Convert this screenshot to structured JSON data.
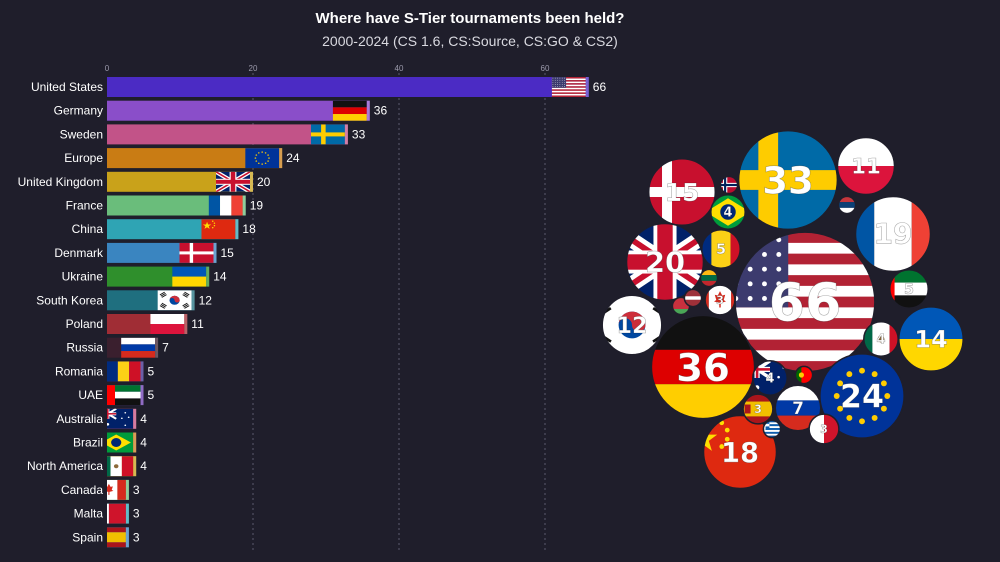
{
  "header": {
    "title": "Where have S-Tier tournaments been held?",
    "subtitle": "2000-2024 (CS 1.6, CS:Source, CS:GO & CS2)"
  },
  "chart_data": [
    {
      "type": "bar",
      "orientation": "horizontal",
      "xlim": [
        0,
        66
      ],
      "xticks": [
        "0",
        "20",
        "40",
        "60"
      ],
      "grid": true,
      "categories": [
        "United States",
        "Germany",
        "Sweden",
        "Europe",
        "United Kingdom",
        "France",
        "China",
        "Denmark",
        "Ukraine",
        "South Korea",
        "Poland",
        "Russia",
        "Romania",
        "UAE",
        "Australia",
        "Brazil",
        "North America",
        "Canada",
        "Malta",
        "Spain"
      ],
      "values": [
        66,
        36,
        33,
        24,
        20,
        19,
        18,
        15,
        14,
        12,
        11,
        7,
        5,
        5,
        4,
        4,
        4,
        3,
        3,
        3
      ],
      "value_labels": [
        "66",
        "36",
        "33",
        "24",
        "20",
        "19",
        "18",
        "15",
        "14",
        "12",
        "11",
        "7",
        "5",
        "5",
        "4",
        "4",
        "4",
        "3",
        "3",
        "3"
      ],
      "colors": [
        "#4b2bc4",
        "#8a4ec9",
        "#c25388",
        "#c97c14",
        "#c9a21a",
        "#6abd7b",
        "#2fa4b4",
        "#3a85c0",
        "#2f8f2c",
        "#1f6f7f",
        "#a02d35",
        "#3a1f2e",
        "#3a2a8a",
        "#6a3ab0",
        "#c75080",
        "#cc7a22",
        "#c9a21a",
        "#6abd7b",
        "#2fa4b4",
        "#3a85c0"
      ]
    },
    {
      "type": "bubble",
      "bubbles": [
        {
          "country": "United States",
          "flag": "us",
          "value": 66,
          "label": "66"
        },
        {
          "country": "Germany",
          "flag": "de",
          "value": 36,
          "label": "36"
        },
        {
          "country": "Sweden",
          "flag": "se",
          "value": 33,
          "label": "33"
        },
        {
          "country": "Europe",
          "flag": "eu",
          "value": 24,
          "label": "24"
        },
        {
          "country": "United Kingdom",
          "flag": "gb",
          "value": 20,
          "label": "20"
        },
        {
          "country": "France",
          "flag": "fr",
          "value": 19,
          "label": "19"
        },
        {
          "country": "China",
          "flag": "cn",
          "value": 18,
          "label": "18"
        },
        {
          "country": "Denmark",
          "flag": "dk",
          "value": 15,
          "label": "15"
        },
        {
          "country": "Ukraine",
          "flag": "ua",
          "value": 14,
          "label": "14"
        },
        {
          "country": "South Korea",
          "flag": "kr",
          "value": 12,
          "label": "12"
        },
        {
          "country": "Poland",
          "flag": "pl",
          "value": 11,
          "label": "11"
        },
        {
          "country": "Russia",
          "flag": "ru",
          "value": 7,
          "label": "7"
        },
        {
          "country": "Romania",
          "flag": "ro",
          "value": 5,
          "label": "5"
        },
        {
          "country": "UAE",
          "flag": "ae",
          "value": 5,
          "label": "5"
        },
        {
          "country": "Australia",
          "flag": "au",
          "value": 4,
          "label": "4"
        },
        {
          "country": "Brazil",
          "flag": "br",
          "value": 4,
          "label": "4"
        },
        {
          "country": "North America",
          "flag": "mx",
          "value": 4,
          "label": "4"
        },
        {
          "country": "Canada",
          "flag": "ca",
          "value": 3,
          "label": "3"
        },
        {
          "country": "Malta",
          "flag": "mt",
          "value": 3,
          "label": "3"
        },
        {
          "country": "Spain",
          "flag": "es",
          "value": 3,
          "label": "3"
        },
        {
          "country": "Serbia",
          "flag": "rs",
          "value": 1,
          "label": ""
        },
        {
          "country": "Norway",
          "flag": "no",
          "value": 1,
          "label": ""
        },
        {
          "country": "Lithuania",
          "flag": "lt",
          "value": 1,
          "label": ""
        },
        {
          "country": "Portugal",
          "flag": "pt",
          "value": 1,
          "label": ""
        },
        {
          "country": "Belarus",
          "flag": "by",
          "value": 1,
          "label": ""
        },
        {
          "country": "Latvia",
          "flag": "lv",
          "value": 1,
          "label": ""
        },
        {
          "country": "Greece",
          "flag": "gr",
          "value": 1,
          "label": ""
        }
      ]
    }
  ]
}
